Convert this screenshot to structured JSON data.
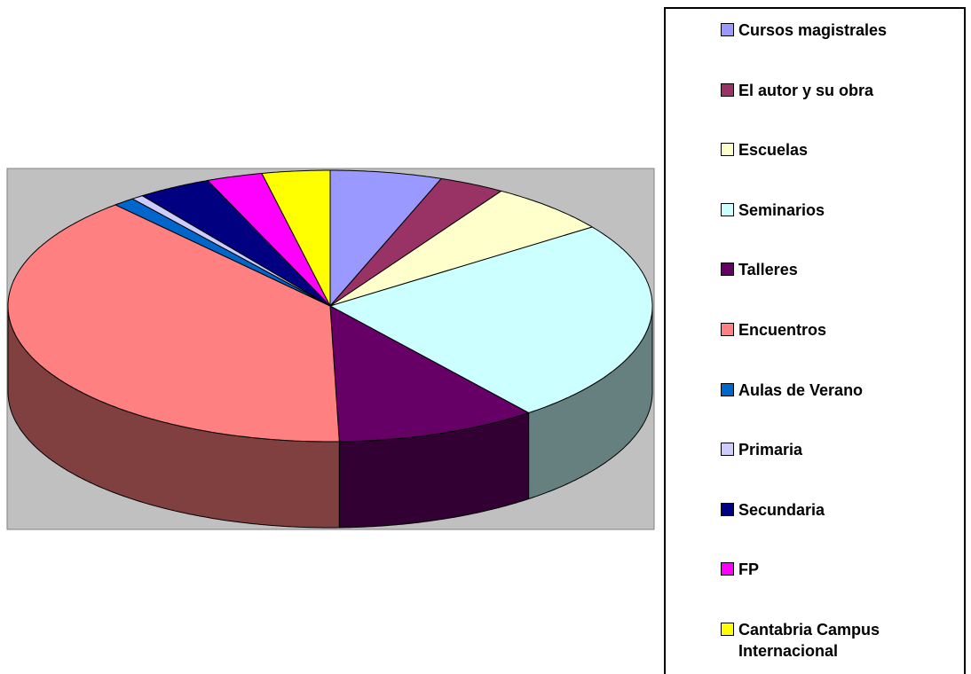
{
  "chart_data": {
    "type": "pie3d",
    "categories": [
      "Cursos magistrales",
      "El autor y su obra",
      "Escuelas",
      "Seminarios",
      "Talleres",
      "Encuentros",
      "Aulas de Verano",
      "Primaria",
      "Secundaria",
      "FP",
      "Cantabria Campus Internacional"
    ],
    "values": [
      5.6,
      3.3,
      6.2,
      24.3,
      10.1,
      38.8,
      1.1,
      0.6,
      3.7,
      2.8,
      3.4
    ],
    "colors": [
      "#9999ff",
      "#993366",
      "#ffffcc",
      "#ccffff",
      "#660066",
      "#ff8080",
      "#0066cc",
      "#ccccff",
      "#000080",
      "#ff00ff",
      "#ffff00"
    ]
  }
}
